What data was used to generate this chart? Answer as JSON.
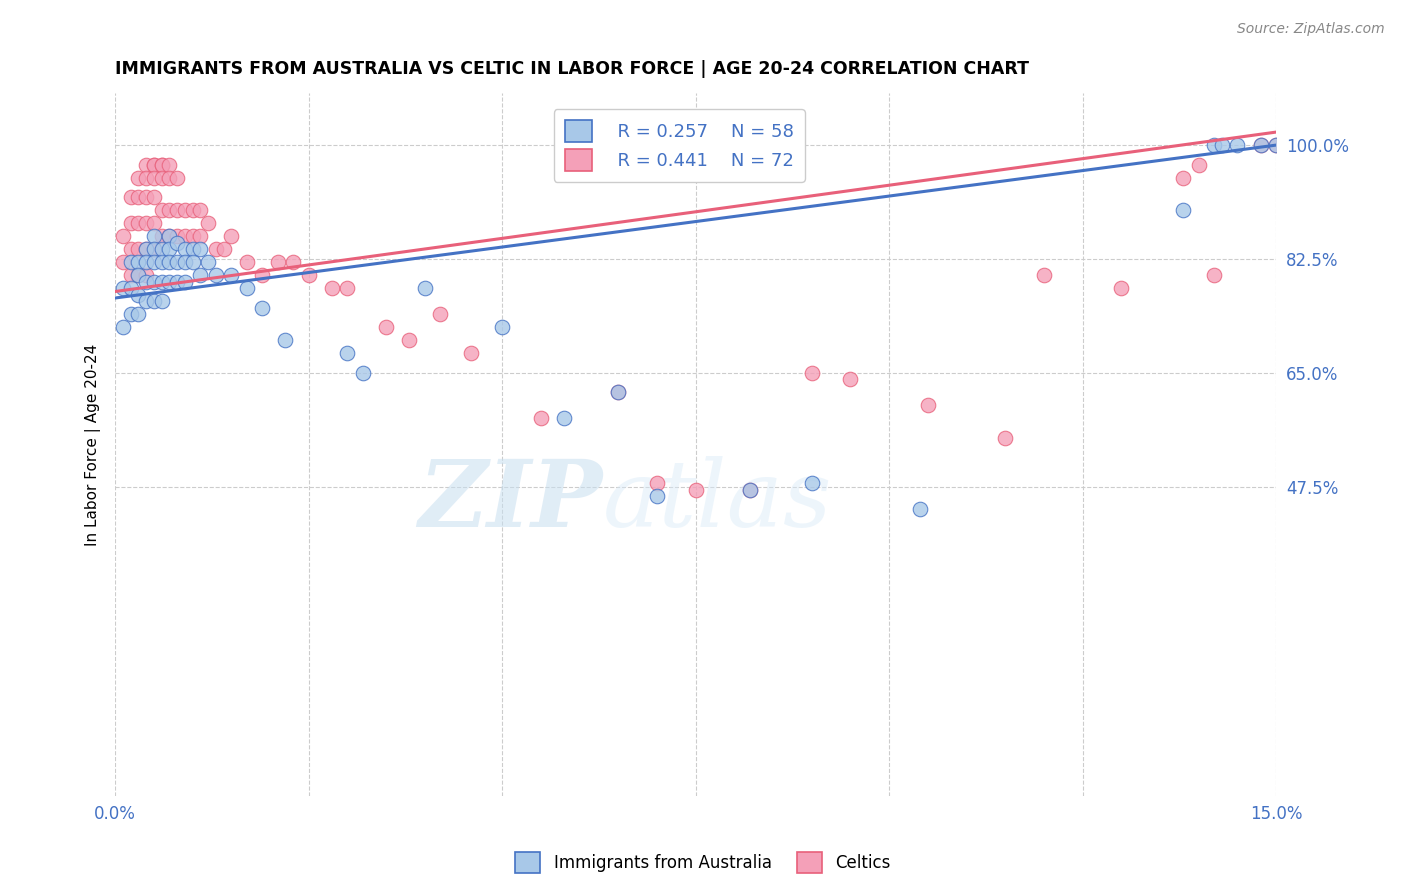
{
  "title": "IMMIGRANTS FROM AUSTRALIA VS CELTIC IN LABOR FORCE | AGE 20-24 CORRELATION CHART",
  "source": "Source: ZipAtlas.com",
  "ylabel": "In Labor Force | Age 20-24",
  "xlim": [
    0.0,
    0.15
  ],
  "ylim": [
    0.0,
    1.08
  ],
  "xtick_labels": [
    "0.0%",
    "15.0%"
  ],
  "ytick_labels": [
    "100.0%",
    "82.5%",
    "65.0%",
    "47.5%"
  ],
  "ytick_values": [
    1.0,
    0.825,
    0.65,
    0.475
  ],
  "xtick_values": [
    0.0,
    0.15
  ],
  "legend_r1": "R = 0.257",
  "legend_n1": "N = 58",
  "legend_r2": "R = 0.441",
  "legend_n2": "N = 72",
  "color_australia": "#a8c8e8",
  "color_celtic": "#f4a0b8",
  "color_line_australia": "#4472c4",
  "color_line_celtic": "#e8607a",
  "color_axis_labels": "#4472c4",
  "watermark_zip": "ZIP",
  "watermark_atlas": "atlas",
  "aus_line_x0": 0.0,
  "aus_line_y0": 0.765,
  "aus_line_x1": 0.15,
  "aus_line_y1": 1.0,
  "celt_line_x0": 0.0,
  "celt_line_y0": 0.775,
  "celt_line_x1": 0.15,
  "celt_line_y1": 1.02,
  "australia_x": [
    0.001,
    0.001,
    0.002,
    0.002,
    0.002,
    0.003,
    0.003,
    0.003,
    0.003,
    0.004,
    0.004,
    0.004,
    0.004,
    0.005,
    0.005,
    0.005,
    0.005,
    0.005,
    0.006,
    0.006,
    0.006,
    0.006,
    0.007,
    0.007,
    0.007,
    0.007,
    0.008,
    0.008,
    0.008,
    0.009,
    0.009,
    0.009,
    0.01,
    0.01,
    0.011,
    0.011,
    0.012,
    0.013,
    0.015,
    0.017,
    0.019,
    0.022,
    0.03,
    0.032,
    0.04,
    0.05,
    0.058,
    0.065,
    0.07,
    0.082,
    0.09,
    0.104,
    0.138,
    0.142,
    0.143,
    0.145,
    0.148,
    0.15
  ],
  "australia_y": [
    0.78,
    0.72,
    0.82,
    0.78,
    0.74,
    0.82,
    0.8,
    0.77,
    0.74,
    0.84,
    0.82,
    0.79,
    0.76,
    0.86,
    0.84,
    0.82,
    0.79,
    0.76,
    0.84,
    0.82,
    0.79,
    0.76,
    0.86,
    0.84,
    0.82,
    0.79,
    0.85,
    0.82,
    0.79,
    0.84,
    0.82,
    0.79,
    0.84,
    0.82,
    0.84,
    0.8,
    0.82,
    0.8,
    0.8,
    0.78,
    0.75,
    0.7,
    0.68,
    0.65,
    0.78,
    0.72,
    0.58,
    0.62,
    0.46,
    0.47,
    0.48,
    0.44,
    0.9,
    1.0,
    1.0,
    1.0,
    1.0,
    1.0
  ],
  "celtic_x": [
    0.001,
    0.001,
    0.002,
    0.002,
    0.002,
    0.002,
    0.003,
    0.003,
    0.003,
    0.003,
    0.003,
    0.004,
    0.004,
    0.004,
    0.004,
    0.004,
    0.004,
    0.005,
    0.005,
    0.005,
    0.005,
    0.005,
    0.005,
    0.006,
    0.006,
    0.006,
    0.006,
    0.006,
    0.007,
    0.007,
    0.007,
    0.007,
    0.008,
    0.008,
    0.008,
    0.009,
    0.009,
    0.01,
    0.01,
    0.011,
    0.011,
    0.012,
    0.013,
    0.014,
    0.015,
    0.017,
    0.019,
    0.021,
    0.023,
    0.025,
    0.028,
    0.03,
    0.035,
    0.038,
    0.042,
    0.046,
    0.055,
    0.065,
    0.07,
    0.075,
    0.082,
    0.09,
    0.095,
    0.105,
    0.115,
    0.12,
    0.13,
    0.138,
    0.14,
    0.142,
    0.148,
    0.15
  ],
  "celtic_y": [
    0.86,
    0.82,
    0.92,
    0.88,
    0.84,
    0.8,
    0.95,
    0.92,
    0.88,
    0.84,
    0.8,
    0.97,
    0.95,
    0.92,
    0.88,
    0.84,
    0.8,
    0.97,
    0.97,
    0.95,
    0.92,
    0.88,
    0.84,
    0.97,
    0.97,
    0.95,
    0.9,
    0.86,
    0.97,
    0.95,
    0.9,
    0.86,
    0.95,
    0.9,
    0.86,
    0.9,
    0.86,
    0.9,
    0.86,
    0.9,
    0.86,
    0.88,
    0.84,
    0.84,
    0.86,
    0.82,
    0.8,
    0.82,
    0.82,
    0.8,
    0.78,
    0.78,
    0.72,
    0.7,
    0.74,
    0.68,
    0.58,
    0.62,
    0.48,
    0.47,
    0.47,
    0.65,
    0.64,
    0.6,
    0.55,
    0.8,
    0.78,
    0.95,
    0.97,
    0.8,
    1.0,
    1.0
  ]
}
